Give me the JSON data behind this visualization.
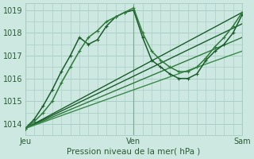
{
  "xlabel": "Pression niveau de la mer( hPa )",
  "bg_color": "#cce8e0",
  "grid_color": "#aacfc8",
  "tick_label_color": "#2a5c35",
  "xlim": [
    0,
    48
  ],
  "ylim": [
    1013.5,
    1019.3
  ],
  "yticks": [
    1014,
    1015,
    1016,
    1017,
    1018,
    1019
  ],
  "xtick_positions": [
    0,
    24,
    48
  ],
  "xtick_labels": [
    "Jeu",
    "Ven",
    "Sam"
  ],
  "marker_lines": [
    {
      "x": [
        0,
        2,
        4,
        6,
        8,
        10,
        12,
        14,
        16,
        18,
        20,
        22,
        24,
        26,
        28,
        30,
        32,
        34,
        36,
        38,
        40,
        42,
        44,
        46,
        48
      ],
      "y": [
        1013.8,
        1014.2,
        1014.8,
        1015.5,
        1016.3,
        1017.0,
        1017.8,
        1017.5,
        1017.7,
        1018.3,
        1018.7,
        1018.9,
        1019.0,
        1017.8,
        1016.8,
        1016.5,
        1016.2,
        1016.0,
        1016.0,
        1016.2,
        1016.8,
        1017.2,
        1017.5,
        1018.0,
        1018.8
      ],
      "color": "#1a5c2a",
      "lw": 1.1,
      "ms": 2.5
    },
    {
      "x": [
        0,
        2,
        4,
        6,
        8,
        10,
        12,
        14,
        16,
        18,
        20,
        22,
        24,
        26,
        28,
        30,
        32,
        34,
        36,
        38,
        40,
        42,
        44,
        46,
        48
      ],
      "y": [
        1013.8,
        1014.1,
        1014.5,
        1015.0,
        1015.8,
        1016.5,
        1017.2,
        1017.8,
        1018.1,
        1018.5,
        1018.7,
        1018.9,
        1019.1,
        1018.0,
        1017.2,
        1016.8,
        1016.5,
        1016.3,
        1016.3,
        1016.5,
        1016.9,
        1017.4,
        1017.8,
        1018.3,
        1018.9
      ],
      "color": "#2d7a3a",
      "lw": 1.1,
      "ms": 2.5
    }
  ],
  "straight_lines": [
    {
      "x0": 0,
      "y0": 1013.8,
      "x1": 48,
      "y1": 1018.9,
      "color": "#1a5c2a",
      "lw": 1.0
    },
    {
      "x0": 0,
      "y0": 1013.8,
      "x1": 48,
      "y1": 1018.4,
      "color": "#1a5c2a",
      "lw": 1.0
    },
    {
      "x0": 0,
      "y0": 1013.8,
      "x1": 48,
      "y1": 1017.8,
      "color": "#2d7a3a",
      "lw": 1.0
    },
    {
      "x0": 0,
      "y0": 1013.8,
      "x1": 48,
      "y1": 1017.2,
      "color": "#3a8a4a",
      "lw": 1.0
    }
  ],
  "vlines": [
    0,
    24,
    48
  ],
  "vline_color": "#7aaa8a"
}
